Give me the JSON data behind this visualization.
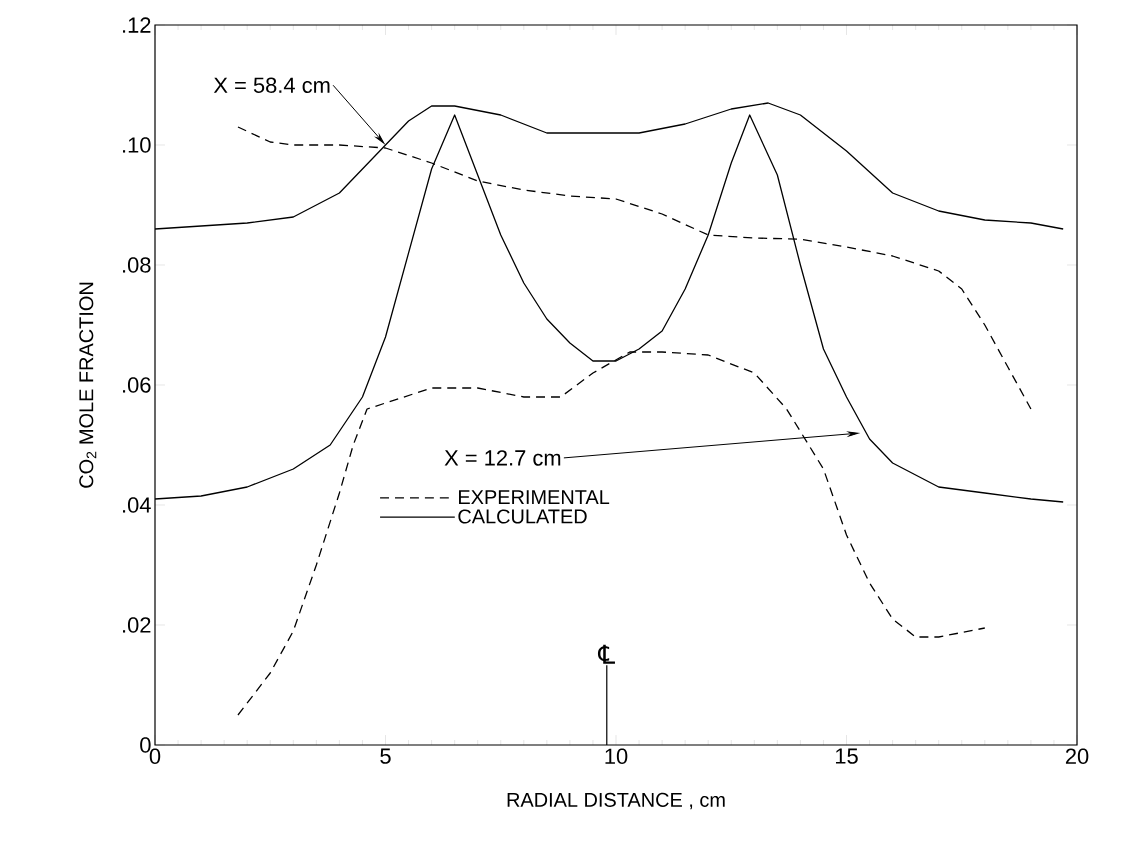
{
  "chart_data": {
    "type": "line",
    "xlabel": "RADIAL DISTANCE , cm",
    "ylabel": "CO$_{2}$ MOLE FRACTION",
    "xlim": [
      0,
      20
    ],
    "ylim": [
      0,
      0.12
    ],
    "xticks": [
      0,
      5,
      10,
      15,
      20
    ],
    "yticks": [
      {
        "value": 0,
        "label": "0"
      },
      {
        "value": 0.02,
        "label": ".02"
      },
      {
        "value": 0.04,
        "label": ".04"
      },
      {
        "value": 0.06,
        "label": ".06"
      },
      {
        "value": 0.08,
        "label": ".08"
      },
      {
        "value": 0.1,
        "label": ".10"
      },
      {
        "value": 0.12,
        "label": ".12"
      }
    ],
    "legend": "bottom left",
    "grid": false,
    "series": [
      {
        "name": "EXPERIMENTAL",
        "color": "#000000",
        "line_style": "dashed",
        "x": [
          1.8,
          2.5,
          3,
          3.5,
          4,
          4.3,
          4.6,
          5,
          6,
          7,
          8,
          8.8,
          9.5,
          10.3,
          11,
          12,
          13,
          13.7,
          14.5,
          15,
          15.5,
          16,
          16.5,
          17,
          18
        ],
        "values": [
          0.005,
          0.012,
          0.019,
          0.03,
          0.042,
          0.05,
          0.056,
          0.057,
          0.0595,
          0.0595,
          0.058,
          0.058,
          0.062,
          0.0655,
          0.0655,
          0.065,
          0.062,
          0.056,
          0.046,
          0.035,
          0.027,
          0.021,
          0.018,
          0.018,
          0.0195
        ]
      },
      {
        "name": "CALCULATED",
        "color": "#000000",
        "line_style": "solid",
        "x": [
          0,
          1,
          2,
          3,
          3.8,
          4.5,
          5,
          5.5,
          6,
          6.5,
          7,
          7.5,
          8,
          8.5,
          9,
          9.5,
          10,
          10.5,
          11,
          11.5,
          12,
          12.5,
          12.9,
          13.5,
          14,
          14.5,
          15,
          15.5,
          16,
          17,
          18,
          19,
          19.7
        ],
        "values": [
          0.041,
          0.0415,
          0.043,
          0.046,
          0.05,
          0.058,
          0.068,
          0.082,
          0.096,
          0.105,
          0.095,
          0.085,
          0.077,
          0.071,
          0.067,
          0.064,
          0.064,
          0.066,
          0.069,
          0.076,
          0.085,
          0.097,
          0.105,
          0.095,
          0.08,
          0.066,
          0.058,
          0.051,
          0.047,
          0.043,
          0.042,
          0.041,
          0.0405
        ]
      },
      {
        "color": "#000000",
        "line_style": "dashed",
        "x": [
          1.8,
          2.5,
          3,
          4,
          5,
          6,
          7,
          8,
          9,
          10,
          11,
          12,
          13,
          14,
          15,
          16,
          17,
          17.5,
          18,
          18.5,
          19
        ],
        "values": [
          0.103,
          0.1005,
          0.1,
          0.1,
          0.0995,
          0.097,
          0.094,
          0.0925,
          0.0915,
          0.091,
          0.0885,
          0.085,
          0.0845,
          0.0843,
          0.083,
          0.0815,
          0.079,
          0.076,
          0.07,
          0.063,
          0.056
        ]
      },
      {
        "color": "#000000",
        "line_style": "solid",
        "x": [
          0,
          2,
          3,
          4,
          5,
          5.5,
          6,
          6.5,
          7.5,
          8.5,
          9.5,
          10.5,
          11.5,
          12.5,
          13.3,
          14,
          15,
          16,
          17,
          18,
          19,
          19.7
        ],
        "values": [
          0.086,
          0.087,
          0.088,
          0.092,
          0.1,
          0.104,
          0.1065,
          0.1065,
          0.105,
          0.102,
          0.102,
          0.102,
          0.1035,
          0.106,
          0.107,
          0.105,
          0.099,
          0.092,
          0.089,
          0.0875,
          0.087,
          0.086
        ]
      }
    ],
    "ref_lines": [
      {
        "axis": "x",
        "value": 9.8,
        "label": "℄"
      }
    ],
    "annotations": [
      {
        "text": "X = 58.4 cm",
        "x": 5,
        "y": 0.1
      },
      {
        "text": "X = 12.7 cm",
        "x": 15.3,
        "y": 0.052
      }
    ]
  }
}
